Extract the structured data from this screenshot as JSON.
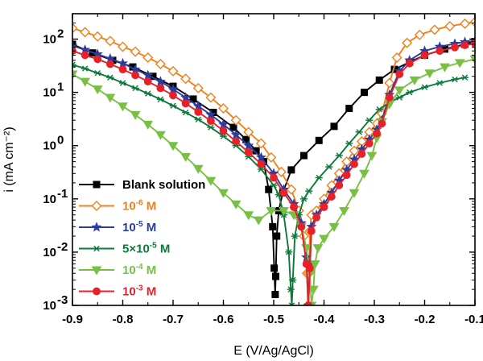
{
  "chart_data": {
    "type": "line",
    "xlabel": "E (V/Ag/AgCl)",
    "ylabel": "i (mA cm⁻²)",
    "xlim": [
      -0.9,
      -0.1
    ],
    "ylim": [
      0.001,
      300
    ],
    "yscale": "log",
    "x_ticks": [
      -0.9,
      -0.8,
      -0.7,
      -0.6,
      -0.5,
      -0.4,
      -0.3,
      -0.2,
      -0.1
    ],
    "x_tick_labels": [
      "-0.9",
      "-0.8",
      "-0.7",
      "-0.6",
      "-0.5",
      "-0.4",
      "-0.3",
      "-0.2",
      "-0.1"
    ],
    "y_ticks": [
      {
        "value": 0.001,
        "mantissa": "10",
        "exponent": "-3"
      },
      {
        "value": 0.01,
        "mantissa": "10",
        "exponent": "-2"
      },
      {
        "value": 0.1,
        "mantissa": "10",
        "exponent": "-1"
      },
      {
        "value": 1,
        "mantissa": "10",
        "exponent": "0"
      },
      {
        "value": 10,
        "mantissa": "10",
        "exponent": "1"
      },
      {
        "value": 100,
        "mantissa": "10",
        "exponent": "2"
      }
    ],
    "legend_position": "bottom-left",
    "series": [
      {
        "name": "Blank solution",
        "label_main": "Blank solution",
        "label_exp": "",
        "label_unit": "",
        "color": "#000000",
        "marker": "square",
        "marker_fill": "#000000",
        "points": [
          [
            -0.9,
            80
          ],
          [
            -0.86,
            55
          ],
          [
            -0.82,
            40
          ],
          [
            -0.78,
            30
          ],
          [
            -0.74,
            20
          ],
          [
            -0.7,
            13
          ],
          [
            -0.66,
            7.5
          ],
          [
            -0.62,
            4.2
          ],
          [
            -0.58,
            2.2
          ],
          [
            -0.555,
            1.3
          ],
          [
            -0.535,
            0.8
          ],
          [
            -0.52,
            0.5
          ],
          [
            -0.51,
            0.15
          ],
          [
            -0.502,
            0.03
          ],
          [
            -0.499,
            0.005
          ],
          [
            -0.497,
            0.0016
          ],
          [
            -0.496,
            0.0035
          ],
          [
            -0.494,
            0.02
          ],
          [
            -0.49,
            0.06
          ],
          [
            -0.482,
            0.13
          ],
          [
            -0.465,
            0.35
          ],
          [
            -0.44,
            0.65
          ],
          [
            -0.41,
            1.25
          ],
          [
            -0.38,
            2.3
          ],
          [
            -0.35,
            5
          ],
          [
            -0.32,
            10
          ],
          [
            -0.29,
            17
          ],
          [
            -0.26,
            27
          ],
          [
            -0.23,
            37
          ],
          [
            -0.2,
            50
          ],
          [
            -0.16,
            65
          ],
          [
            -0.12,
            80
          ],
          [
            -0.1,
            90
          ]
        ]
      },
      {
        "name": "10-6 M",
        "label_main": "10",
        "label_exp": "-6",
        "label_unit": " M",
        "color": "#f08019",
        "marker": "diamond",
        "marker_fill": "#ffffff",
        "points": [
          [
            -0.9,
            160
          ],
          [
            -0.875,
            135
          ],
          [
            -0.85,
            112
          ],
          [
            -0.825,
            92
          ],
          [
            -0.8,
            72
          ],
          [
            -0.775,
            58
          ],
          [
            -0.75,
            45
          ],
          [
            -0.725,
            34
          ],
          [
            -0.7,
            25
          ],
          [
            -0.675,
            18
          ],
          [
            -0.65,
            12
          ],
          [
            -0.625,
            8
          ],
          [
            -0.6,
            5
          ],
          [
            -0.575,
            3
          ],
          [
            -0.55,
            1.8
          ],
          [
            -0.525,
            1.1
          ],
          [
            -0.505,
            0.6
          ],
          [
            -0.485,
            0.32
          ],
          [
            -0.465,
            0.15
          ],
          [
            -0.45,
            0.06
          ],
          [
            -0.44,
            0.02
          ],
          [
            -0.434,
            0.004
          ],
          [
            -0.432,
            0.001
          ],
          [
            -0.43,
            0.004
          ],
          [
            -0.428,
            0.025
          ],
          [
            -0.425,
            0.05
          ],
          [
            -0.415,
            0.06
          ],
          [
            -0.4,
            0.1
          ],
          [
            -0.385,
            0.18
          ],
          [
            -0.37,
            0.3
          ],
          [
            -0.355,
            0.5
          ],
          [
            -0.34,
            0.8
          ],
          [
            -0.325,
            1.2
          ],
          [
            -0.31,
            1.8
          ],
          [
            -0.295,
            2.6
          ],
          [
            -0.285,
            4
          ],
          [
            -0.27,
            15
          ],
          [
            -0.255,
            45
          ],
          [
            -0.235,
            85
          ],
          [
            -0.21,
            120
          ],
          [
            -0.18,
            150
          ],
          [
            -0.15,
            175
          ],
          [
            -0.12,
            195
          ],
          [
            -0.1,
            210
          ]
        ]
      },
      {
        "name": "10-5 M",
        "label_main": "10",
        "label_exp": "-5",
        "label_unit": " M",
        "color": "#2b3c9e",
        "marker": "star",
        "marker_fill": "#2b3c9e",
        "points": [
          [
            -0.9,
            75
          ],
          [
            -0.875,
            63
          ],
          [
            -0.85,
            52
          ],
          [
            -0.825,
            43
          ],
          [
            -0.8,
            35
          ],
          [
            -0.775,
            27
          ],
          [
            -0.75,
            21
          ],
          [
            -0.725,
            16
          ],
          [
            -0.7,
            11.5
          ],
          [
            -0.675,
            8
          ],
          [
            -0.65,
            5.5
          ],
          [
            -0.625,
            3.8
          ],
          [
            -0.6,
            2.5
          ],
          [
            -0.575,
            1.6
          ],
          [
            -0.55,
            1.0
          ],
          [
            -0.525,
            0.6
          ],
          [
            -0.5,
            0.3
          ],
          [
            -0.48,
            0.15
          ],
          [
            -0.46,
            0.08
          ],
          [
            -0.445,
            0.035
          ],
          [
            -0.435,
            0.008
          ],
          [
            -0.431,
            0.001
          ],
          [
            -0.428,
            0.006
          ],
          [
            -0.425,
            0.03
          ],
          [
            -0.415,
            0.05
          ],
          [
            -0.4,
            0.08
          ],
          [
            -0.385,
            0.13
          ],
          [
            -0.37,
            0.22
          ],
          [
            -0.355,
            0.35
          ],
          [
            -0.34,
            0.55
          ],
          [
            -0.325,
            0.85
          ],
          [
            -0.31,
            1.3
          ],
          [
            -0.295,
            2.0
          ],
          [
            -0.285,
            3
          ],
          [
            -0.27,
            9
          ],
          [
            -0.25,
            25
          ],
          [
            -0.23,
            40
          ],
          [
            -0.2,
            60
          ],
          [
            -0.17,
            72
          ],
          [
            -0.14,
            82
          ],
          [
            -0.12,
            88
          ],
          [
            -0.1,
            92
          ]
        ]
      },
      {
        "name": "5×10-5 M",
        "label_main": "5×10",
        "label_exp": "-5",
        "label_unit": " M",
        "color": "#0b7a3a",
        "marker": "asterisk",
        "marker_fill": "#0b7a3a",
        "points": [
          [
            -0.9,
            33
          ],
          [
            -0.875,
            28
          ],
          [
            -0.85,
            23
          ],
          [
            -0.825,
            19
          ],
          [
            -0.8,
            15
          ],
          [
            -0.775,
            12
          ],
          [
            -0.75,
            9.5
          ],
          [
            -0.725,
            7.4
          ],
          [
            -0.7,
            5.6
          ],
          [
            -0.675,
            4.2
          ],
          [
            -0.65,
            3.1
          ],
          [
            -0.625,
            2.2
          ],
          [
            -0.6,
            1.5
          ],
          [
            -0.575,
            1.0
          ],
          [
            -0.55,
            0.62
          ],
          [
            -0.525,
            0.36
          ],
          [
            -0.5,
            0.18
          ],
          [
            -0.49,
            0.12
          ],
          [
            -0.48,
            0.05
          ],
          [
            -0.47,
            0.01
          ],
          [
            -0.466,
            0.002
          ],
          [
            -0.464,
            0.001
          ],
          [
            -0.462,
            0.003
          ],
          [
            -0.458,
            0.02
          ],
          [
            -0.45,
            0.05
          ],
          [
            -0.44,
            0.1
          ],
          [
            -0.43,
            0.14
          ],
          [
            -0.41,
            0.25
          ],
          [
            -0.39,
            0.4
          ],
          [
            -0.37,
            0.65
          ],
          [
            -0.35,
            1.1
          ],
          [
            -0.33,
            1.8
          ],
          [
            -0.31,
            3
          ],
          [
            -0.29,
            4.8
          ],
          [
            -0.27,
            6.5
          ],
          [
            -0.25,
            8
          ],
          [
            -0.23,
            10
          ],
          [
            -0.2,
            12.5
          ],
          [
            -0.17,
            15
          ],
          [
            -0.14,
            17.5
          ],
          [
            -0.12,
            19
          ]
        ]
      },
      {
        "name": "10-4 M",
        "label_main": "10",
        "label_exp": "-4",
        "label_unit": " M",
        "color": "#78c042",
        "marker": "triangle-down",
        "marker_fill": "#78c042",
        "points": [
          [
            -0.9,
            22
          ],
          [
            -0.875,
            16
          ],
          [
            -0.85,
            11.5
          ],
          [
            -0.825,
            8
          ],
          [
            -0.8,
            5.5
          ],
          [
            -0.775,
            3.8
          ],
          [
            -0.75,
            2.5
          ],
          [
            -0.725,
            1.6
          ],
          [
            -0.7,
            1.0
          ],
          [
            -0.675,
            0.62
          ],
          [
            -0.65,
            0.37
          ],
          [
            -0.625,
            0.22
          ],
          [
            -0.6,
            0.13
          ],
          [
            -0.575,
            0.08
          ],
          [
            -0.55,
            0.05
          ],
          [
            -0.53,
            0.04
          ],
          [
            -0.505,
            0.06
          ],
          [
            -0.48,
            0.06
          ],
          [
            -0.46,
            0.05
          ],
          [
            -0.445,
            0.03
          ],
          [
            -0.435,
            0.012
          ],
          [
            -0.428,
            0.004
          ],
          [
            -0.425,
            0.001
          ],
          [
            -0.421,
            0.002
          ],
          [
            -0.418,
            0.006
          ],
          [
            -0.412,
            0.012
          ],
          [
            -0.4,
            0.018
          ],
          [
            -0.38,
            0.03
          ],
          [
            -0.36,
            0.06
          ],
          [
            -0.34,
            0.13
          ],
          [
            -0.32,
            0.3
          ],
          [
            -0.305,
            0.65
          ],
          [
            -0.295,
            1.4
          ],
          [
            -0.285,
            2.8
          ],
          [
            -0.27,
            6
          ],
          [
            -0.25,
            11
          ],
          [
            -0.22,
            17
          ],
          [
            -0.19,
            23
          ],
          [
            -0.16,
            30
          ],
          [
            -0.13,
            36
          ],
          [
            -0.1,
            42
          ]
        ]
      },
      {
        "name": "10-3 M",
        "label_main": "10",
        "label_exp": "-3",
        "label_unit": " M",
        "color": "#e8202a",
        "marker": "circle",
        "marker_fill": "#e8202a",
        "points": [
          [
            -0.9,
            60
          ],
          [
            -0.875,
            50
          ],
          [
            -0.85,
            42
          ],
          [
            -0.825,
            34
          ],
          [
            -0.8,
            27
          ],
          [
            -0.775,
            21
          ],
          [
            -0.75,
            16
          ],
          [
            -0.725,
            12
          ],
          [
            -0.7,
            8.8
          ],
          [
            -0.675,
            6.2
          ],
          [
            -0.65,
            4.3
          ],
          [
            -0.625,
            2.9
          ],
          [
            -0.6,
            1.9
          ],
          [
            -0.575,
            1.2
          ],
          [
            -0.55,
            0.75
          ],
          [
            -0.525,
            0.45
          ],
          [
            -0.5,
            0.25
          ],
          [
            -0.48,
            0.13
          ],
          [
            -0.46,
            0.07
          ],
          [
            -0.445,
            0.03
          ],
          [
            -0.435,
            0.006
          ],
          [
            -0.431,
            0.001
          ],
          [
            -0.428,
            0.005
          ],
          [
            -0.425,
            0.025
          ],
          [
            -0.415,
            0.045
          ],
          [
            -0.4,
            0.07
          ],
          [
            -0.385,
            0.11
          ],
          [
            -0.37,
            0.18
          ],
          [
            -0.355,
            0.28
          ],
          [
            -0.34,
            0.45
          ],
          [
            -0.325,
            0.7
          ],
          [
            -0.31,
            1.1
          ],
          [
            -0.295,
            1.7
          ],
          [
            -0.285,
            2.6
          ],
          [
            -0.27,
            8
          ],
          [
            -0.25,
            22
          ],
          [
            -0.23,
            35
          ],
          [
            -0.2,
            50
          ],
          [
            -0.17,
            60
          ],
          [
            -0.14,
            70
          ],
          [
            -0.12,
            77
          ],
          [
            -0.1,
            82
          ]
        ]
      }
    ]
  }
}
